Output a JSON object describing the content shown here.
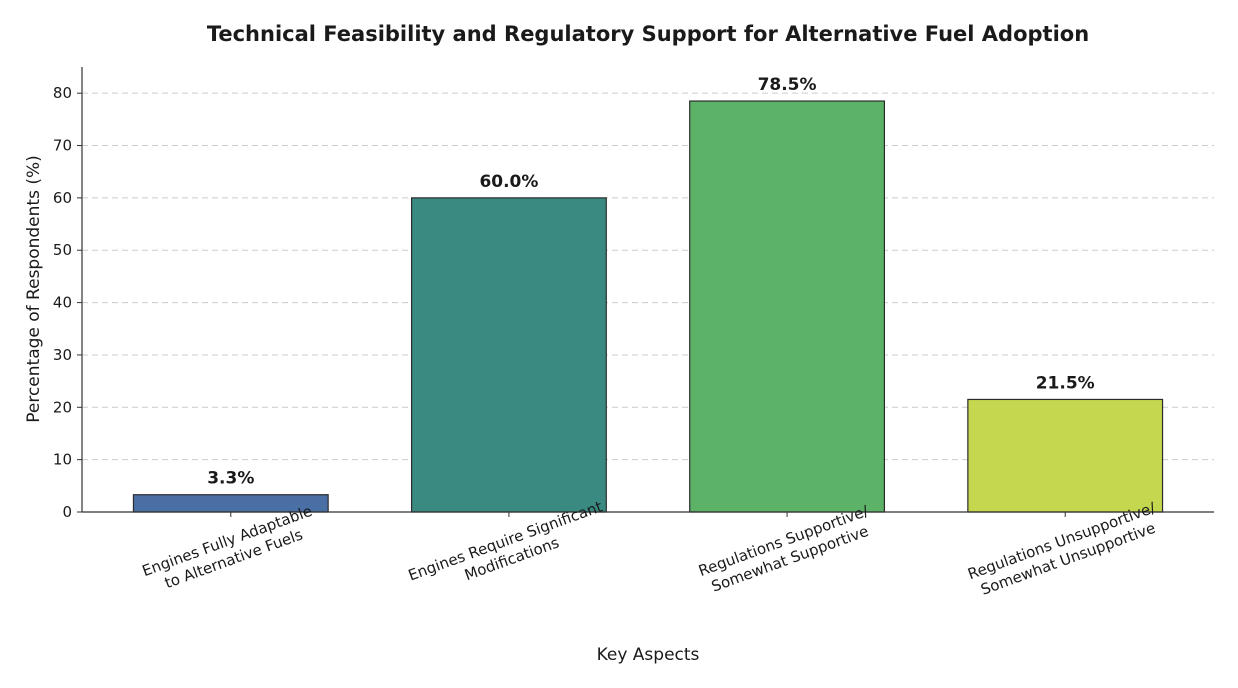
{
  "chart_data": {
    "type": "bar",
    "title": "Technical Feasibility and Regulatory Support for Alternative Fuel Adoption",
    "xlabel": "Key Aspects",
    "ylabel": "Percentage of Respondents (%)",
    "ylim": [
      0,
      85
    ],
    "yticks": [
      0,
      10,
      20,
      30,
      40,
      50,
      60,
      70,
      80
    ],
    "grid": true,
    "categories": [
      [
        "Engines Fully Adaptable",
        "to Alternative Fuels"
      ],
      [
        "Engines Require Significant",
        "Modifications"
      ],
      [
        "Regulations Supportive/",
        "Somewhat Supportive"
      ],
      [
        "Regulations Unsupportive/",
        "Somewhat Unsupportive"
      ]
    ],
    "values": [
      3.3,
      60.0,
      78.5,
      21.5
    ],
    "data_labels": [
      "3.3%",
      "60.0%",
      "78.5%",
      "21.5%"
    ],
    "colors": [
      "#4a6fa5",
      "#3a8a82",
      "#5cb367",
      "#c5d64f"
    ]
  }
}
